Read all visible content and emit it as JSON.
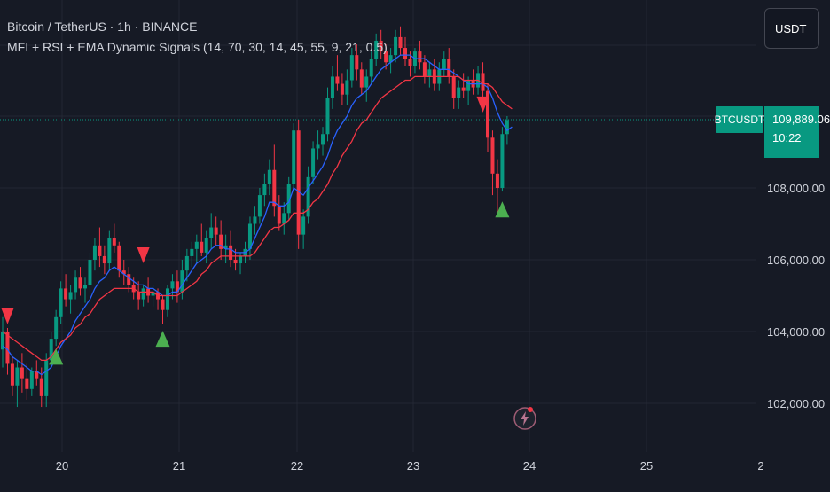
{
  "header": {
    "symbol_line": "Bitcoin / TetherUS · 1h · BINANCE",
    "indicator_line": "MFI + RSI + EMA Dynamic Signals (14, 70, 30, 14, 45, 55, 9, 21, 0.5)"
  },
  "currency_button": "USDT",
  "price_tag": {
    "symbol": "BTCUSDT",
    "price": "109,889.06",
    "countdown": "10:22"
  },
  "colors": {
    "background": "#161a25",
    "grid": "#232733",
    "up": "#089981",
    "down": "#f23645",
    "ema_fast": "#2962ff",
    "ema_slow": "#f23645",
    "buy_signal": "#4caf50",
    "sell_signal": "#f23645"
  },
  "chart_data": {
    "type": "candlestick",
    "interval": "1h",
    "x_tick_labels": [
      "20",
      "21",
      "22",
      "23",
      "24",
      "25",
      "2"
    ],
    "y_tick_labels": [
      "102,000.00",
      "104,000.00",
      "106,000.00",
      "108,000.00"
    ],
    "ylim": [
      100600,
      113000
    ],
    "last_price": 109889.06,
    "candles": [
      [
        103500,
        104400,
        103000,
        104000
      ],
      [
        104000,
        104100,
        102800,
        103100
      ],
      [
        103100,
        103300,
        102200,
        102500
      ],
      [
        102500,
        103200,
        101900,
        103000
      ],
      [
        103000,
        103400,
        102300,
        102700
      ],
      [
        102700,
        103100,
        102100,
        102400
      ],
      [
        102400,
        103000,
        102200,
        102900
      ],
      [
        102900,
        103200,
        102500,
        102700
      ],
      [
        102700,
        103000,
        101900,
        102200
      ],
      [
        102200,
        103400,
        101900,
        103200
      ],
      [
        103200,
        104000,
        103000,
        103800
      ],
      [
        103800,
        104600,
        103600,
        104400
      ],
      [
        104400,
        105400,
        104200,
        105200
      ],
      [
        105200,
        105600,
        104700,
        104900
      ],
      [
        104900,
        105300,
        104500,
        105100
      ],
      [
        105100,
        105700,
        104900,
        105500
      ],
      [
        105500,
        105800,
        105000,
        105200
      ],
      [
        105200,
        105500,
        104800,
        105300
      ],
      [
        105300,
        106200,
        105100,
        106000
      ],
      [
        106000,
        106600,
        105700,
        106400
      ],
      [
        106400,
        106900,
        105800,
        106100
      ],
      [
        106100,
        106400,
        105600,
        105900
      ],
      [
        105900,
        106800,
        105700,
        106600
      ],
      [
        106600,
        107000,
        106200,
        106400
      ],
      [
        106400,
        106500,
        105500,
        105700
      ],
      [
        105700,
        106000,
        105300,
        105600
      ],
      [
        105600,
        105800,
        105100,
        105300
      ],
      [
        105300,
        105500,
        104900,
        105100
      ],
      [
        105100,
        105400,
        104600,
        104900
      ],
      [
        104900,
        105300,
        104700,
        105200
      ],
      [
        105200,
        105500,
        104800,
        105000
      ],
      [
        105000,
        105300,
        104700,
        105100
      ],
      [
        105100,
        105200,
        104600,
        104900
      ],
      [
        104900,
        105000,
        104200,
        104600
      ],
      [
        104600,
        105300,
        104400,
        105200
      ],
      [
        105200,
        105600,
        104900,
        105400
      ],
      [
        105400,
        105700,
        104800,
        105100
      ],
      [
        105100,
        106000,
        104900,
        105700
      ],
      [
        105700,
        106300,
        105400,
        106100
      ],
      [
        106100,
        106500,
        105800,
        106300
      ],
      [
        106300,
        106700,
        105900,
        106500
      ],
      [
        106500,
        107000,
        106100,
        106200
      ],
      [
        106200,
        106800,
        105900,
        106600
      ],
      [
        106600,
        107300,
        106300,
        106900
      ],
      [
        106900,
        107200,
        106400,
        106700
      ],
      [
        106700,
        107100,
        106000,
        106300
      ],
      [
        106300,
        106700,
        105900,
        106400
      ],
      [
        106400,
        106800,
        105800,
        106000
      ],
      [
        106000,
        106300,
        105700,
        105900
      ],
      [
        105900,
        106200,
        105600,
        106100
      ],
      [
        106100,
        106500,
        105900,
        106300
      ],
      [
        106300,
        107200,
        106000,
        107000
      ],
      [
        107000,
        107500,
        106700,
        107200
      ],
      [
        107200,
        108000,
        107000,
        107800
      ],
      [
        107800,
        108400,
        107500,
        108100
      ],
      [
        108100,
        108800,
        107800,
        108500
      ],
      [
        108500,
        109200,
        107200,
        107500
      ],
      [
        107500,
        107800,
        106800,
        107000
      ],
      [
        107000,
        107600,
        106700,
        107300
      ],
      [
        107300,
        108300,
        107100,
        108100
      ],
      [
        108100,
        109800,
        107900,
        109600
      ],
      [
        109600,
        109900,
        106300,
        106700
      ],
      [
        106700,
        107400,
        106300,
        107200
      ],
      [
        107200,
        108600,
        107000,
        108300
      ],
      [
        108300,
        109300,
        108100,
        109100
      ],
      [
        109100,
        109600,
        108800,
        109200
      ],
      [
        109200,
        109700,
        108900,
        109500
      ],
      [
        109500,
        110800,
        109300,
        110500
      ],
      [
        110500,
        111400,
        110200,
        111100
      ],
      [
        111100,
        111700,
        110700,
        110900
      ],
      [
        110900,
        111200,
        110300,
        110600
      ],
      [
        110600,
        111300,
        110300,
        111000
      ],
      [
        111000,
        111900,
        110800,
        111700
      ],
      [
        111700,
        112000,
        111000,
        111300
      ],
      [
        111300,
        111500,
        110600,
        110800
      ],
      [
        110800,
        111300,
        110400,
        111100
      ],
      [
        111100,
        111800,
        110900,
        111600
      ],
      [
        111600,
        112300,
        111400,
        112100
      ],
      [
        112100,
        112400,
        111600,
        111800
      ],
      [
        111800,
        112000,
        111300,
        111500
      ],
      [
        111500,
        111900,
        111200,
        111700
      ],
      [
        111700,
        112400,
        111500,
        112200
      ],
      [
        112200,
        112500,
        111700,
        111900
      ],
      [
        111900,
        112200,
        111400,
        111600
      ],
      [
        111600,
        111800,
        111100,
        111400
      ],
      [
        111400,
        111900,
        111200,
        111800
      ],
      [
        111800,
        112100,
        111300,
        111500
      ],
      [
        111500,
        111700,
        110900,
        111100
      ],
      [
        111100,
        111500,
        110800,
        111300
      ],
      [
        111300,
        111600,
        110700,
        110900
      ],
      [
        110900,
        111500,
        110700,
        111300
      ],
      [
        111300,
        111800,
        111100,
        111600
      ],
      [
        111600,
        111900,
        110900,
        111100
      ],
      [
        111100,
        111300,
        110200,
        110500
      ],
      [
        110500,
        111000,
        110200,
        110800
      ],
      [
        110800,
        111200,
        110500,
        110700
      ],
      [
        110700,
        111100,
        110300,
        111000
      ],
      [
        111000,
        111300,
        110600,
        110800
      ],
      [
        110800,
        111400,
        110600,
        111200
      ],
      [
        111200,
        111500,
        110500,
        110700
      ],
      [
        110700,
        110900,
        109000,
        109400
      ],
      [
        109400,
        109600,
        107800,
        108400
      ],
      [
        108400,
        108800,
        107300,
        108000
      ],
      [
        108000,
        109700,
        107900,
        109500
      ],
      [
        109500,
        110000,
        109200,
        109889
      ]
    ],
    "series": [
      {
        "values": [
          103600,
          103500,
          103300,
          103200,
          103100,
          103000,
          102900,
          102900,
          102800,
          102900,
          103000,
          103300,
          103600,
          103800,
          104000,
          104300,
          104500,
          104700,
          104900,
          105200,
          105400,
          105500,
          105700,
          105800,
          105700,
          105600,
          105500,
          105400,
          105300,
          105300,
          105200,
          105200,
          105100,
          105000,
          105000,
          105100,
          105100,
          105300,
          105500,
          105700,
          105900,
          106000,
          106100,
          106300,
          106400,
          106400,
          106300,
          106300,
          106200,
          106200,
          106200,
          106300,
          106600,
          106900,
          107200,
          107600,
          107600,
          107500,
          107500,
          107600,
          108000,
          107900,
          107800,
          108000,
          108200,
          108400,
          108600,
          108900,
          109300,
          109600,
          109800,
          110000,
          110300,
          110500,
          110600,
          110700,
          110900,
          111100,
          111300,
          111400,
          111500,
          111600,
          111700,
          111700,
          111700,
          111600,
          111600,
          111600,
          111500,
          111400,
          111300,
          111300,
          111300,
          111200,
          111100,
          111000,
          110900,
          110900,
          110900,
          110900,
          110800,
          110500,
          110100,
          109800,
          109600,
          109700
        ]
      },
      {
        "values": [
          104000,
          103900,
          103800,
          103700,
          103600,
          103500,
          103400,
          103300,
          103200,
          103200,
          103300,
          103500,
          103700,
          103800,
          103900,
          104100,
          104200,
          104400,
          104500,
          104700,
          104900,
          105000,
          105100,
          105200,
          105200,
          105200,
          105200,
          105200,
          105100,
          105100,
          105100,
          105100,
          105000,
          105000,
          105000,
          105000,
          105000,
          105100,
          105200,
          105300,
          105400,
          105600,
          105700,
          105900,
          106000,
          106100,
          106100,
          106100,
          106100,
          106100,
          106100,
          106100,
          106200,
          106400,
          106600,
          106800,
          106900,
          106900,
          107000,
          107100,
          107300,
          107300,
          107300,
          107400,
          107600,
          107700,
          107900,
          108100,
          108400,
          108600,
          108900,
          109100,
          109300,
          109600,
          109800,
          109900,
          110100,
          110300,
          110500,
          110600,
          110700,
          110800,
          110900,
          111000,
          111000,
          111100,
          111100,
          111100,
          111100,
          111100,
          111100,
          111100,
          111100,
          111100,
          111100,
          111000,
          111000,
          111000,
          111000,
          110900,
          110900,
          110800,
          110600,
          110400,
          110300,
          110200
        ]
      }
    ],
    "signals": [
      {
        "type": "sell",
        "index": 1,
        "price": 104400
      },
      {
        "type": "buy",
        "index": 11,
        "price": 103300
      },
      {
        "type": "sell",
        "index": 29,
        "price": 106100
      },
      {
        "type": "buy",
        "index": 33,
        "price": 103800
      },
      {
        "type": "sell",
        "index": 99,
        "price": 110300
      },
      {
        "type": "buy",
        "index": 103,
        "price": 107400
      }
    ]
  }
}
